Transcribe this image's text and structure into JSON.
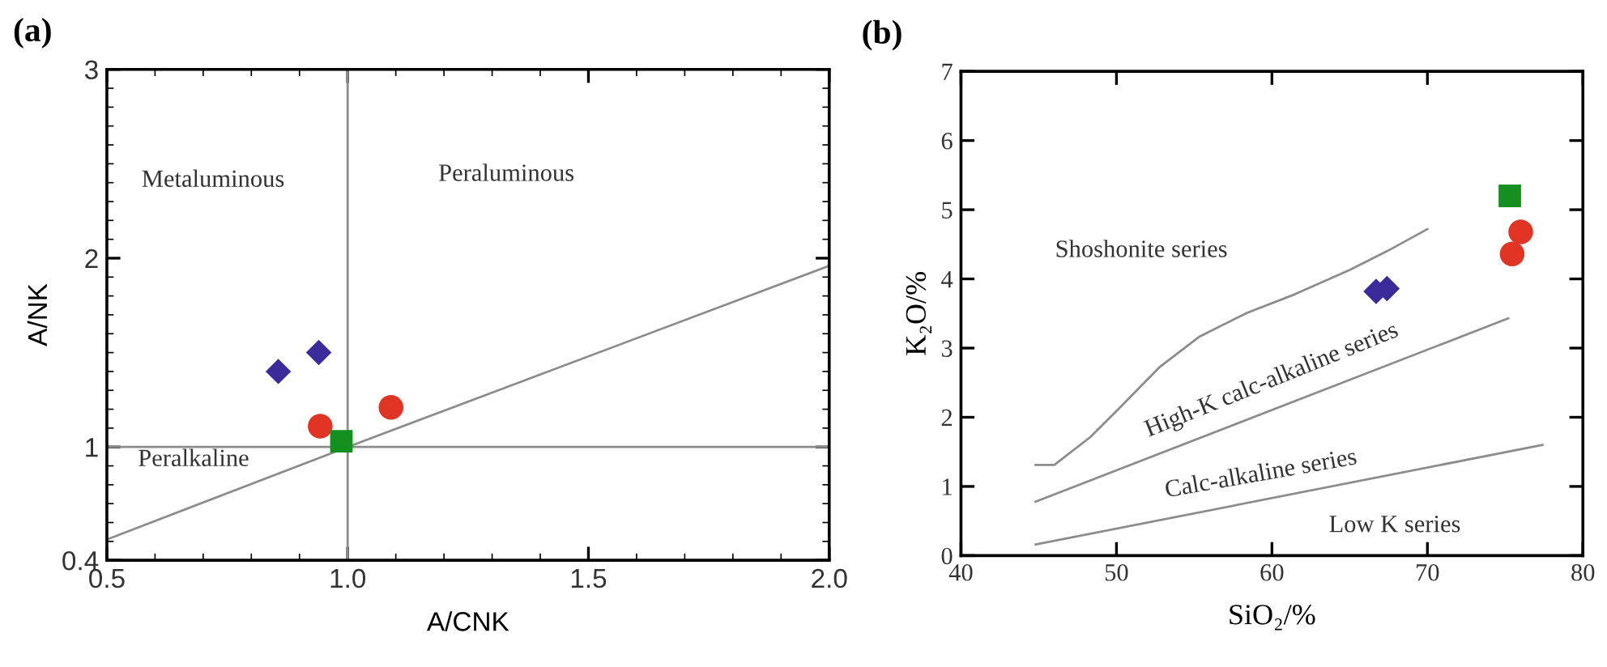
{
  "chart_data": [
    {
      "type": "scatter",
      "title": "(a)",
      "xlabel": "A/CNK",
      "ylabel": "A/NK",
      "xlim": [
        0.5,
        2.0
      ],
      "ylim": [
        0.4,
        3
      ],
      "xticks": [
        {
          "value": 0.5,
          "label": "0.5"
        },
        {
          "value": 1.0,
          "label": "1.0"
        },
        {
          "value": 1.5,
          "label": "1.5"
        },
        {
          "value": 2.0,
          "label": "2.0"
        }
      ],
      "yticks": [
        0.4,
        1,
        2,
        3
      ],
      "grid": false,
      "legend": false,
      "series": [
        {
          "type": "line",
          "color": "#8c8c8c",
          "marker": "none",
          "x": [
            1.0,
            1.0
          ],
          "values": [
            0.4,
            3
          ]
        },
        {
          "type": "line",
          "color": "#8c8c8c",
          "marker": "none",
          "x": [
            0.5,
            2.0
          ],
          "values": [
            1,
            1
          ]
        },
        {
          "type": "line",
          "color": "#8c8c8c",
          "marker": "none",
          "x": [
            0.5,
            1.0,
            2.0
          ],
          "values": [
            0.51,
            1.0,
            1.96
          ]
        },
        {
          "color": "#3a2a9a",
          "marker": "diamond",
          "x": [
            0.856,
            0.94
          ],
          "values": [
            1.4,
            1.5
          ]
        },
        {
          "color": "#e03525",
          "marker": "circle",
          "x": [
            0.943,
            1.09
          ],
          "values": [
            1.11,
            1.21
          ]
        },
        {
          "color": "#139020",
          "marker": "square",
          "x": [
            0.987
          ],
          "values": [
            1.03
          ]
        }
      ],
      "annotations": [
        "Metaluminous",
        "Peraluminous",
        "Peralkaline"
      ]
    },
    {
      "type": "scatter",
      "title": "(b)",
      "xlabel": "SiO₂/%",
      "ylabel": "K₂O/%",
      "xlim": [
        40,
        80
      ],
      "ylim": [
        0,
        7
      ],
      "xticks": [
        40,
        50,
        60,
        70,
        80
      ],
      "yticks": [
        0,
        1,
        2,
        3,
        4,
        5,
        6,
        7
      ],
      "grid": false,
      "legend": false,
      "series": [
        {
          "type": "line",
          "color": "#8c8c8c",
          "marker": "none",
          "x": [
            44.8,
            46.0,
            48.3,
            50.4,
            52.8,
            55.3,
            58.4,
            61.5,
            65.0,
            67.4,
            70.0
          ],
          "values": [
            1.31,
            1.31,
            1.71,
            2.18,
            2.73,
            3.16,
            3.51,
            3.78,
            4.13,
            4.4,
            4.72
          ]
        },
        {
          "type": "line",
          "color": "#8c8c8c",
          "marker": "none",
          "x": [
            44.8,
            75.2
          ],
          "values": [
            0.78,
            3.43
          ]
        },
        {
          "type": "line",
          "color": "#8c8c8c",
          "marker": "none",
          "x": [
            44.8,
            77.4
          ],
          "values": [
            0.16,
            1.6
          ]
        },
        {
          "color": "#3a2a9a",
          "marker": "diamond",
          "x": [
            66.7,
            67.4
          ],
          "values": [
            3.82,
            3.86
          ]
        },
        {
          "color": "#e03525",
          "marker": "circle",
          "x": [
            76.0,
            75.45
          ],
          "values": [
            4.68,
            4.36
          ]
        },
        {
          "color": "#139020",
          "marker": "square",
          "x": [
            75.3
          ],
          "values": [
            5.2
          ]
        }
      ],
      "annotations": [
        "Shoshonite series",
        "High-K calc-alkaline series",
        "Calc-alkaline series",
        "Low K series"
      ]
    }
  ]
}
